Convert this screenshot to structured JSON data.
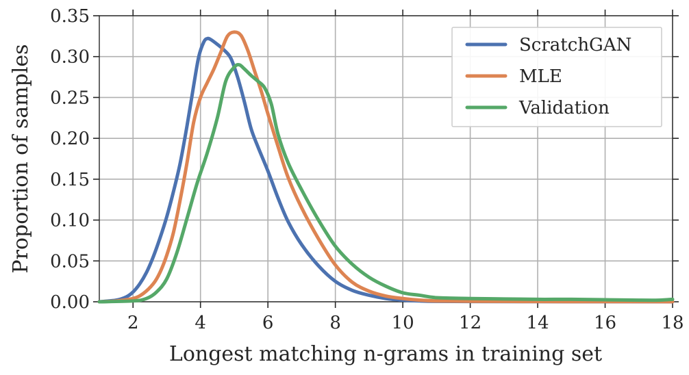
{
  "chart_data": {
    "type": "line",
    "xlabel": "Longest matching n-grams in training set",
    "ylabel": "Proportion of samples",
    "xlim": [
      1,
      18
    ],
    "ylim": [
      0,
      0.35
    ],
    "xticks": [
      2,
      4,
      6,
      8,
      10,
      12,
      14,
      16,
      18
    ],
    "yticks": [
      0.0,
      0.05,
      0.1,
      0.15,
      0.2,
      0.25,
      0.3,
      0.35
    ],
    "xtick_labels": [
      "2",
      "4",
      "6",
      "8",
      "10",
      "12",
      "14",
      "16",
      "18"
    ],
    "ytick_labels": [
      "0.00",
      "0.05",
      "0.10",
      "0.15",
      "0.20",
      "0.25",
      "0.30",
      "0.35"
    ],
    "grid": true,
    "legend_position": "top-right",
    "series": [
      {
        "name": "ScratchGAN",
        "color": "#4c72b0",
        "x": [
          1.0,
          1.5,
          1.8,
          2.0,
          2.2,
          2.4,
          2.6,
          2.8,
          3.0,
          3.2,
          3.4,
          3.6,
          3.8,
          3.95,
          4.1,
          4.2,
          4.3,
          4.5,
          4.7,
          4.9,
          5.1,
          5.3,
          5.5,
          5.7,
          6.0,
          6.3,
          6.6,
          7.0,
          7.5,
          8.0,
          8.5,
          9.0,
          9.5,
          10.0,
          10.5,
          11.0,
          12.0,
          14.0,
          16.0,
          18.0
        ],
        "values": [
          0.0,
          0.002,
          0.006,
          0.012,
          0.022,
          0.036,
          0.055,
          0.078,
          0.104,
          0.135,
          0.17,
          0.215,
          0.265,
          0.3,
          0.318,
          0.322,
          0.321,
          0.315,
          0.308,
          0.298,
          0.275,
          0.245,
          0.212,
          0.19,
          0.16,
          0.127,
          0.098,
          0.07,
          0.044,
          0.025,
          0.014,
          0.008,
          0.004,
          0.002,
          0.001,
          0.0005,
          0.0003,
          0.0002,
          0.0001,
          0.0
        ]
      },
      {
        "name": "MLE",
        "color": "#dd8452",
        "x": [
          1.0,
          1.5,
          2.0,
          2.3,
          2.6,
          2.8,
          3.0,
          3.2,
          3.4,
          3.6,
          3.8,
          4.0,
          4.2,
          4.4,
          4.6,
          4.8,
          5.0,
          5.2,
          5.4,
          5.6,
          5.8,
          6.0,
          6.3,
          6.6,
          7.0,
          7.5,
          8.0,
          8.5,
          9.0,
          9.5,
          10.0,
          10.5,
          11.0,
          12.0,
          14.0,
          16.0,
          18.0
        ],
        "values": [
          0.0,
          0.001,
          0.004,
          0.01,
          0.022,
          0.036,
          0.057,
          0.085,
          0.125,
          0.17,
          0.22,
          0.25,
          0.268,
          0.285,
          0.305,
          0.325,
          0.33,
          0.326,
          0.308,
          0.283,
          0.258,
          0.23,
          0.19,
          0.152,
          0.115,
          0.077,
          0.045,
          0.024,
          0.013,
          0.007,
          0.004,
          0.002,
          0.001,
          0.0006,
          0.0003,
          0.0002,
          0.0001
        ]
      },
      {
        "name": "Validation",
        "color": "#55a868",
        "x": [
          1.0,
          2.0,
          2.4,
          2.7,
          3.0,
          3.3,
          3.6,
          3.9,
          4.2,
          4.5,
          4.75,
          5.0,
          5.15,
          5.3,
          5.5,
          5.7,
          5.9,
          6.1,
          6.3,
          6.6,
          7.0,
          7.5,
          8.0,
          8.5,
          9.0,
          9.5,
          10.0,
          10.5,
          11.0,
          12.0,
          13.0,
          14.0,
          15.0,
          16.0,
          17.0,
          17.6,
          18.0
        ],
        "values": [
          0.0,
          0.001,
          0.004,
          0.012,
          0.028,
          0.06,
          0.102,
          0.145,
          0.182,
          0.225,
          0.27,
          0.287,
          0.29,
          0.285,
          0.277,
          0.27,
          0.262,
          0.242,
          0.205,
          0.17,
          0.137,
          0.1,
          0.068,
          0.046,
          0.03,
          0.019,
          0.011,
          0.008,
          0.005,
          0.004,
          0.0035,
          0.003,
          0.003,
          0.0025,
          0.002,
          0.002,
          0.003
        ]
      }
    ]
  }
}
